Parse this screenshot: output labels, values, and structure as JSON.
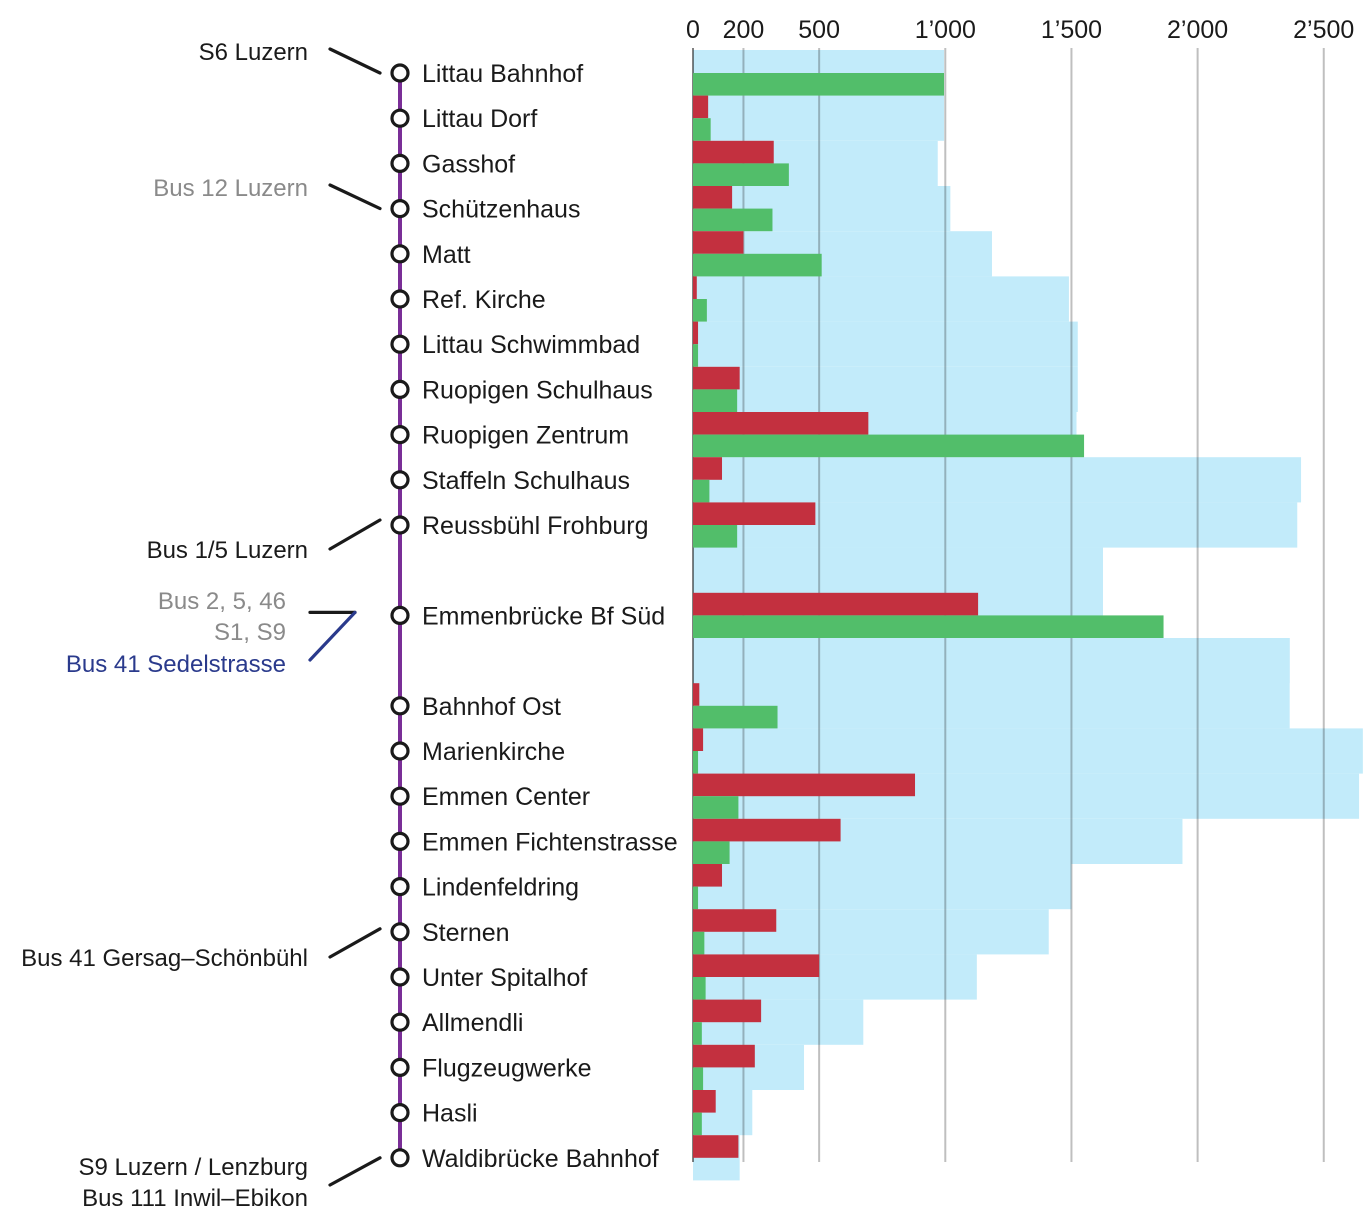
{
  "chart_data": {
    "type": "bar",
    "orientation": "horizontal",
    "x_ticks": [
      0,
      200,
      500,
      1000,
      1500,
      2000,
      2500
    ],
    "x_tick_labels": [
      "0",
      "200",
      "500",
      "1’000",
      "1’500",
      "2’000",
      "2’500"
    ],
    "xlim": [
      0,
      2660
    ],
    "grid": true,
    "stops": [
      "Littau Bahnhof",
      "Littau Dorf",
      "Gasshof",
      "Schützenhaus",
      "Matt",
      "Ref. Kirche",
      "Littau Schwimmbad",
      "Ruopigen Schulhaus",
      "Ruopigen Zentrum",
      "Staffeln Schulhaus",
      "Reussbühl Frohburg",
      "Emmenbrücke Bf Süd",
      "Bahnhof Ost",
      "Marienkirche",
      "Emmen Center",
      "Emmen Fichtenstrasse",
      "Lindenfeldring",
      "Sternen",
      "Unter Spitalhof",
      "Allmendli",
      "Flugzeugwerke",
      "Hasli",
      "Waldibrücke Bahnhof"
    ],
    "series": [
      {
        "color": "#c3303f",
        "values": [
          0,
          60,
          320,
          155,
          200,
          15,
          20,
          185,
          695,
          115,
          485,
          1130,
          25,
          40,
          880,
          585,
          115,
          330,
          500,
          270,
          245,
          90,
          180
        ]
      },
      {
        "color": "#52be6a",
        "values": [
          995,
          70,
          380,
          315,
          510,
          55,
          20,
          175,
          1550,
          65,
          175,
          1865,
          335,
          20,
          180,
          145,
          20,
          45,
          50,
          35,
          40,
          35,
          0
        ]
      },
      {
        "color": "#c2ebfa",
        "values": [
          995,
          995,
          970,
          1020,
          1185,
          1490,
          1525,
          1525,
          1520,
          2410,
          2395,
          1625,
          2365,
          2655,
          2640,
          1940,
          1500,
          1410,
          1125,
          675,
          440,
          235,
          185
        ]
      }
    ],
    "connections": [
      {
        "text": [
          "S6 Luzern"
        ],
        "style": "dark",
        "stop": "Littau Bahnhof"
      },
      {
        "text": [
          "Bus 12 Luzern"
        ],
        "style": "grey",
        "stop": "Schützenhaus"
      },
      {
        "text": [
          "Bus 1/5 Luzern"
        ],
        "style": "dark",
        "stop": "Reussbühl Frohburg"
      },
      {
        "text": [
          "Bus 2, 5, 46",
          "S1, S9"
        ],
        "style": "grey",
        "stop": "Emmenbrücke Bf Süd"
      },
      {
        "text": [
          "Bus 41 Sedelstrasse"
        ],
        "style": "blue",
        "stop": "Emmenbrücke Bf Süd"
      },
      {
        "text": [
          "Bus 41 Gersag–Schönbühl"
        ],
        "style": "dark",
        "stop": "Sternen"
      },
      {
        "text": [
          "S9 Luzern / Lenzburg",
          "Bus 111 Inwil–Ebikon"
        ],
        "style": "dark",
        "stop": "Waldibrücke Bahnhof"
      }
    ]
  }
}
